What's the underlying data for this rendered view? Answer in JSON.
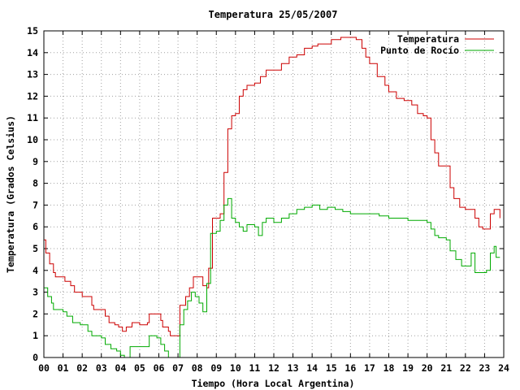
{
  "chart_data": {
    "type": "line",
    "title": "Temperatura 25/05/2007",
    "xlabel": "Tiempo (Hora Local Argentina)",
    "ylabel": "Temperatura (Grados Celsius)",
    "xlim": [
      0,
      24
    ],
    "ylim": [
      0,
      15
    ],
    "xtick_labels": [
      "00",
      "01",
      "02",
      "03",
      "04",
      "05",
      "06",
      "07",
      "08",
      "09",
      "10",
      "11",
      "12",
      "13",
      "14",
      "15",
      "16",
      "17",
      "18",
      "19",
      "20",
      "21",
      "22",
      "23",
      "24"
    ],
    "ytick_labels": [
      "0",
      "1",
      "2",
      "3",
      "4",
      "5",
      "6",
      "7",
      "8",
      "9",
      "10",
      "11",
      "12",
      "13",
      "14",
      "15"
    ],
    "grid": true,
    "legend_position": "top-right",
    "series": [
      {
        "name": "Temperatura",
        "color": "#cc0000",
        "points": [
          [
            0.0,
            5.4
          ],
          [
            0.1,
            4.8
          ],
          [
            0.3,
            4.3
          ],
          [
            0.5,
            3.9
          ],
          [
            0.6,
            3.7
          ],
          [
            1.0,
            3.7
          ],
          [
            1.1,
            3.5
          ],
          [
            1.4,
            3.3
          ],
          [
            1.6,
            3.0
          ],
          [
            2.0,
            2.8
          ],
          [
            2.5,
            2.4
          ],
          [
            2.6,
            2.2
          ],
          [
            3.0,
            2.2
          ],
          [
            3.2,
            1.9
          ],
          [
            3.4,
            1.6
          ],
          [
            3.7,
            1.5
          ],
          [
            3.9,
            1.4
          ],
          [
            4.1,
            1.2
          ],
          [
            4.3,
            1.4
          ],
          [
            4.6,
            1.6
          ],
          [
            5.0,
            1.5
          ],
          [
            5.2,
            1.5
          ],
          [
            5.4,
            1.6
          ],
          [
            5.5,
            2.0
          ],
          [
            5.9,
            2.0
          ],
          [
            6.1,
            1.7
          ],
          [
            6.2,
            1.4
          ],
          [
            6.5,
            1.2
          ],
          [
            6.6,
            1.0
          ],
          [
            6.9,
            1.0
          ],
          [
            7.0,
            1.0
          ],
          [
            7.1,
            2.4
          ],
          [
            7.4,
            2.8
          ],
          [
            7.6,
            3.2
          ],
          [
            7.8,
            3.7
          ],
          [
            8.2,
            3.7
          ],
          [
            8.3,
            3.3
          ],
          [
            8.5,
            3.2
          ],
          [
            8.6,
            4.1
          ],
          [
            8.8,
            6.4
          ],
          [
            9.2,
            6.6
          ],
          [
            9.4,
            8.5
          ],
          [
            9.6,
            10.5
          ],
          [
            9.8,
            11.1
          ],
          [
            10.0,
            11.2
          ],
          [
            10.2,
            12.0
          ],
          [
            10.4,
            12.3
          ],
          [
            10.6,
            12.5
          ],
          [
            11.0,
            12.6
          ],
          [
            11.3,
            12.9
          ],
          [
            11.6,
            13.2
          ],
          [
            12.0,
            13.2
          ],
          [
            12.4,
            13.5
          ],
          [
            12.8,
            13.8
          ],
          [
            13.2,
            13.9
          ],
          [
            13.6,
            14.2
          ],
          [
            14.0,
            14.3
          ],
          [
            14.3,
            14.4
          ],
          [
            14.6,
            14.4
          ],
          [
            15.0,
            14.6
          ],
          [
            15.5,
            14.7
          ],
          [
            16.0,
            14.7
          ],
          [
            16.3,
            14.6
          ],
          [
            16.6,
            14.2
          ],
          [
            16.8,
            13.8
          ],
          [
            17.0,
            13.5
          ],
          [
            17.4,
            12.9
          ],
          [
            17.8,
            12.5
          ],
          [
            18.0,
            12.2
          ],
          [
            18.4,
            11.9
          ],
          [
            18.8,
            11.8
          ],
          [
            19.2,
            11.6
          ],
          [
            19.5,
            11.2
          ],
          [
            19.8,
            11.1
          ],
          [
            20.0,
            11.0
          ],
          [
            20.2,
            10.0
          ],
          [
            20.4,
            9.4
          ],
          [
            20.6,
            8.8
          ],
          [
            21.0,
            8.8
          ],
          [
            21.2,
            7.8
          ],
          [
            21.4,
            7.3
          ],
          [
            21.7,
            6.9
          ],
          [
            22.0,
            6.8
          ],
          [
            22.3,
            6.8
          ],
          [
            22.5,
            6.4
          ],
          [
            22.7,
            6.0
          ],
          [
            22.9,
            5.9
          ],
          [
            23.2,
            5.9
          ],
          [
            23.3,
            6.6
          ],
          [
            23.5,
            6.8
          ],
          [
            23.7,
            6.8
          ],
          [
            23.8,
            6.4
          ]
        ]
      },
      {
        "name": "Punto de Rocío",
        "color": "#00aa00",
        "points": [
          [
            0.0,
            3.2
          ],
          [
            0.2,
            2.8
          ],
          [
            0.4,
            2.5
          ],
          [
            0.5,
            2.2
          ],
          [
            1.0,
            2.1
          ],
          [
            1.2,
            1.9
          ],
          [
            1.5,
            1.6
          ],
          [
            1.9,
            1.5
          ],
          [
            2.3,
            1.2
          ],
          [
            2.5,
            1.0
          ],
          [
            3.0,
            0.9
          ],
          [
            3.2,
            0.6
          ],
          [
            3.5,
            0.4
          ],
          [
            3.8,
            0.3
          ],
          [
            4.0,
            0.1
          ],
          [
            4.2,
            0.0
          ],
          [
            4.5,
            0.5
          ],
          [
            5.0,
            0.5
          ],
          [
            5.4,
            0.5
          ],
          [
            5.5,
            1.0
          ],
          [
            5.9,
            0.9
          ],
          [
            6.1,
            0.6
          ],
          [
            6.3,
            0.3
          ],
          [
            6.5,
            0.0
          ],
          [
            7.0,
            0.0
          ],
          [
            7.1,
            1.5
          ],
          [
            7.3,
            2.2
          ],
          [
            7.5,
            2.6
          ],
          [
            7.7,
            3.0
          ],
          [
            7.9,
            2.8
          ],
          [
            8.1,
            2.5
          ],
          [
            8.3,
            2.1
          ],
          [
            8.5,
            3.4
          ],
          [
            8.7,
            5.7
          ],
          [
            9.0,
            5.8
          ],
          [
            9.2,
            6.3
          ],
          [
            9.4,
            7.0
          ],
          [
            9.6,
            7.3
          ],
          [
            9.8,
            6.4
          ],
          [
            10.0,
            6.2
          ],
          [
            10.2,
            6.0
          ],
          [
            10.4,
            5.8
          ],
          [
            10.6,
            6.1
          ],
          [
            11.0,
            6.0
          ],
          [
            11.2,
            5.6
          ],
          [
            11.4,
            6.2
          ],
          [
            11.6,
            6.4
          ],
          [
            12.0,
            6.2
          ],
          [
            12.4,
            6.4
          ],
          [
            12.8,
            6.6
          ],
          [
            13.2,
            6.8
          ],
          [
            13.6,
            6.9
          ],
          [
            14.0,
            7.0
          ],
          [
            14.4,
            6.8
          ],
          [
            14.8,
            6.9
          ],
          [
            15.2,
            6.8
          ],
          [
            15.6,
            6.7
          ],
          [
            16.0,
            6.6
          ],
          [
            16.5,
            6.6
          ],
          [
            17.0,
            6.6
          ],
          [
            17.5,
            6.5
          ],
          [
            18.0,
            6.4
          ],
          [
            18.5,
            6.4
          ],
          [
            19.0,
            6.3
          ],
          [
            19.5,
            6.3
          ],
          [
            20.0,
            6.2
          ],
          [
            20.2,
            5.9
          ],
          [
            20.4,
            5.6
          ],
          [
            20.6,
            5.5
          ],
          [
            21.0,
            5.4
          ],
          [
            21.2,
            4.9
          ],
          [
            21.5,
            4.5
          ],
          [
            21.8,
            4.2
          ],
          [
            22.1,
            4.2
          ],
          [
            22.3,
            4.8
          ],
          [
            22.5,
            3.9
          ],
          [
            22.8,
            3.9
          ],
          [
            23.1,
            4.0
          ],
          [
            23.3,
            4.8
          ],
          [
            23.5,
            5.1
          ],
          [
            23.6,
            4.6
          ],
          [
            23.8,
            4.6
          ]
        ]
      }
    ]
  }
}
